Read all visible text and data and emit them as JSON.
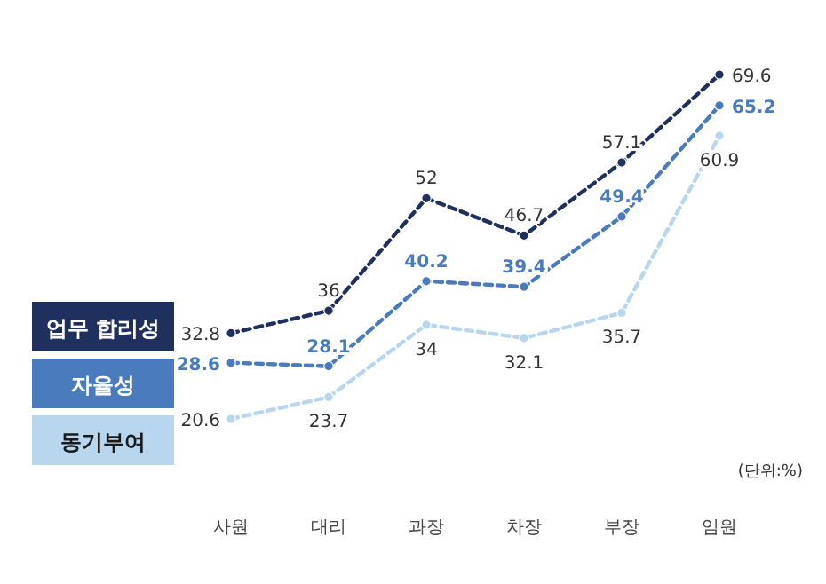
{
  "chart_data": {
    "type": "line",
    "categories": [
      "사원",
      "대리",
      "과장",
      "차장",
      "부장",
      "임원"
    ],
    "series": [
      {
        "name": "업무 합리성",
        "color": "#1f2f5e",
        "values": [
          32.8,
          36,
          52,
          46.7,
          57.1,
          69.6
        ]
      },
      {
        "name": "자율성",
        "color": "#4a7bbd",
        "values": [
          28.6,
          28.1,
          40.2,
          39.4,
          49.4,
          65.2
        ]
      },
      {
        "name": "동기부여",
        "color": "#b9d6ef",
        "values": [
          20.6,
          23.7,
          34,
          32.1,
          35.7,
          60.9
        ]
      }
    ],
    "data_labels": true,
    "marker": "circle",
    "line_style": "dashed",
    "legend": "left",
    "annotations": [
      "(단위:%)"
    ]
  }
}
